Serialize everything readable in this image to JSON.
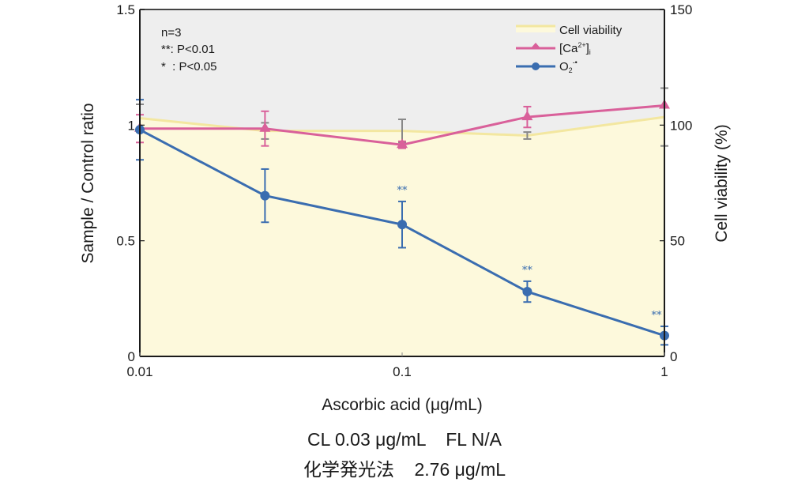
{
  "chart_data": {
    "type": "line",
    "title": "",
    "xlabel": "Ascorbic acid (μg/mL)",
    "ylabel": "Sample / Control ratio",
    "y2label": "Cell viability (%)",
    "xscale": "log",
    "xlim": [
      0.01,
      1
    ],
    "ylim": [
      0,
      1.5
    ],
    "y2lim": [
      0,
      150
    ],
    "xticks": [
      0.01,
      0.1,
      1
    ],
    "xtick_labels": [
      "0.01",
      "0.1",
      "1"
    ],
    "yticks": [
      0,
      0.5,
      1,
      1.5
    ],
    "ytick_labels": [
      "0",
      "0.5",
      "1",
      "1.5"
    ],
    "y2ticks": [
      0,
      50,
      100,
      150
    ],
    "y2tick_labels": [
      "0",
      "50",
      "100",
      "150"
    ],
    "grid": false,
    "legend_position": "top-right",
    "x": [
      0.01,
      0.03,
      0.1,
      0.3,
      1
    ],
    "series": [
      {
        "name": "Cell viability",
        "label_main": "Cell viability",
        "type": "area",
        "axis": "right",
        "color": "#f3e7a0",
        "fill": "#fdf9dc",
        "values": [
          103,
          97.5,
          97.5,
          95.5,
          103.5
        ],
        "errors": [
          6,
          3.5,
          5,
          1.5,
          12.5
        ],
        "error_color": "#888888"
      },
      {
        "name": "[Ca2+]i",
        "label_main": "[Ca",
        "label_sup": "2+",
        "label_close": "]",
        "label_sub": "i",
        "type": "line",
        "marker": "triangle",
        "axis": "left",
        "color": "#d9609a",
        "values": [
          0.985,
          0.985,
          0.915,
          1.035,
          1.085
        ],
        "errors": [
          0.06,
          0.075,
          0.015,
          0.045,
          0.0
        ]
      },
      {
        "name": "O2-•",
        "label_main": "O",
        "label_sub": "2",
        "label_sup": "-•",
        "type": "line",
        "marker": "circle",
        "axis": "left",
        "color": "#3a6db0",
        "values": [
          0.98,
          0.695,
          0.57,
          0.28,
          0.09
        ],
        "errors": [
          0.13,
          0.115,
          0.1,
          0.045,
          0.04
        ],
        "significance": [
          "",
          "",
          "**",
          "**",
          "**"
        ]
      }
    ],
    "annotations": [
      "n=3",
      "**: P<0.01",
      "*  : P<0.05"
    ],
    "colors": {
      "upper_background": "#eeeeee",
      "axis": "#1a1a1a"
    }
  },
  "caption": {
    "line1": "CL 0.03 μg/mL    FL N/A",
    "line2": "化学発光法    2.76 μg/mL"
  }
}
